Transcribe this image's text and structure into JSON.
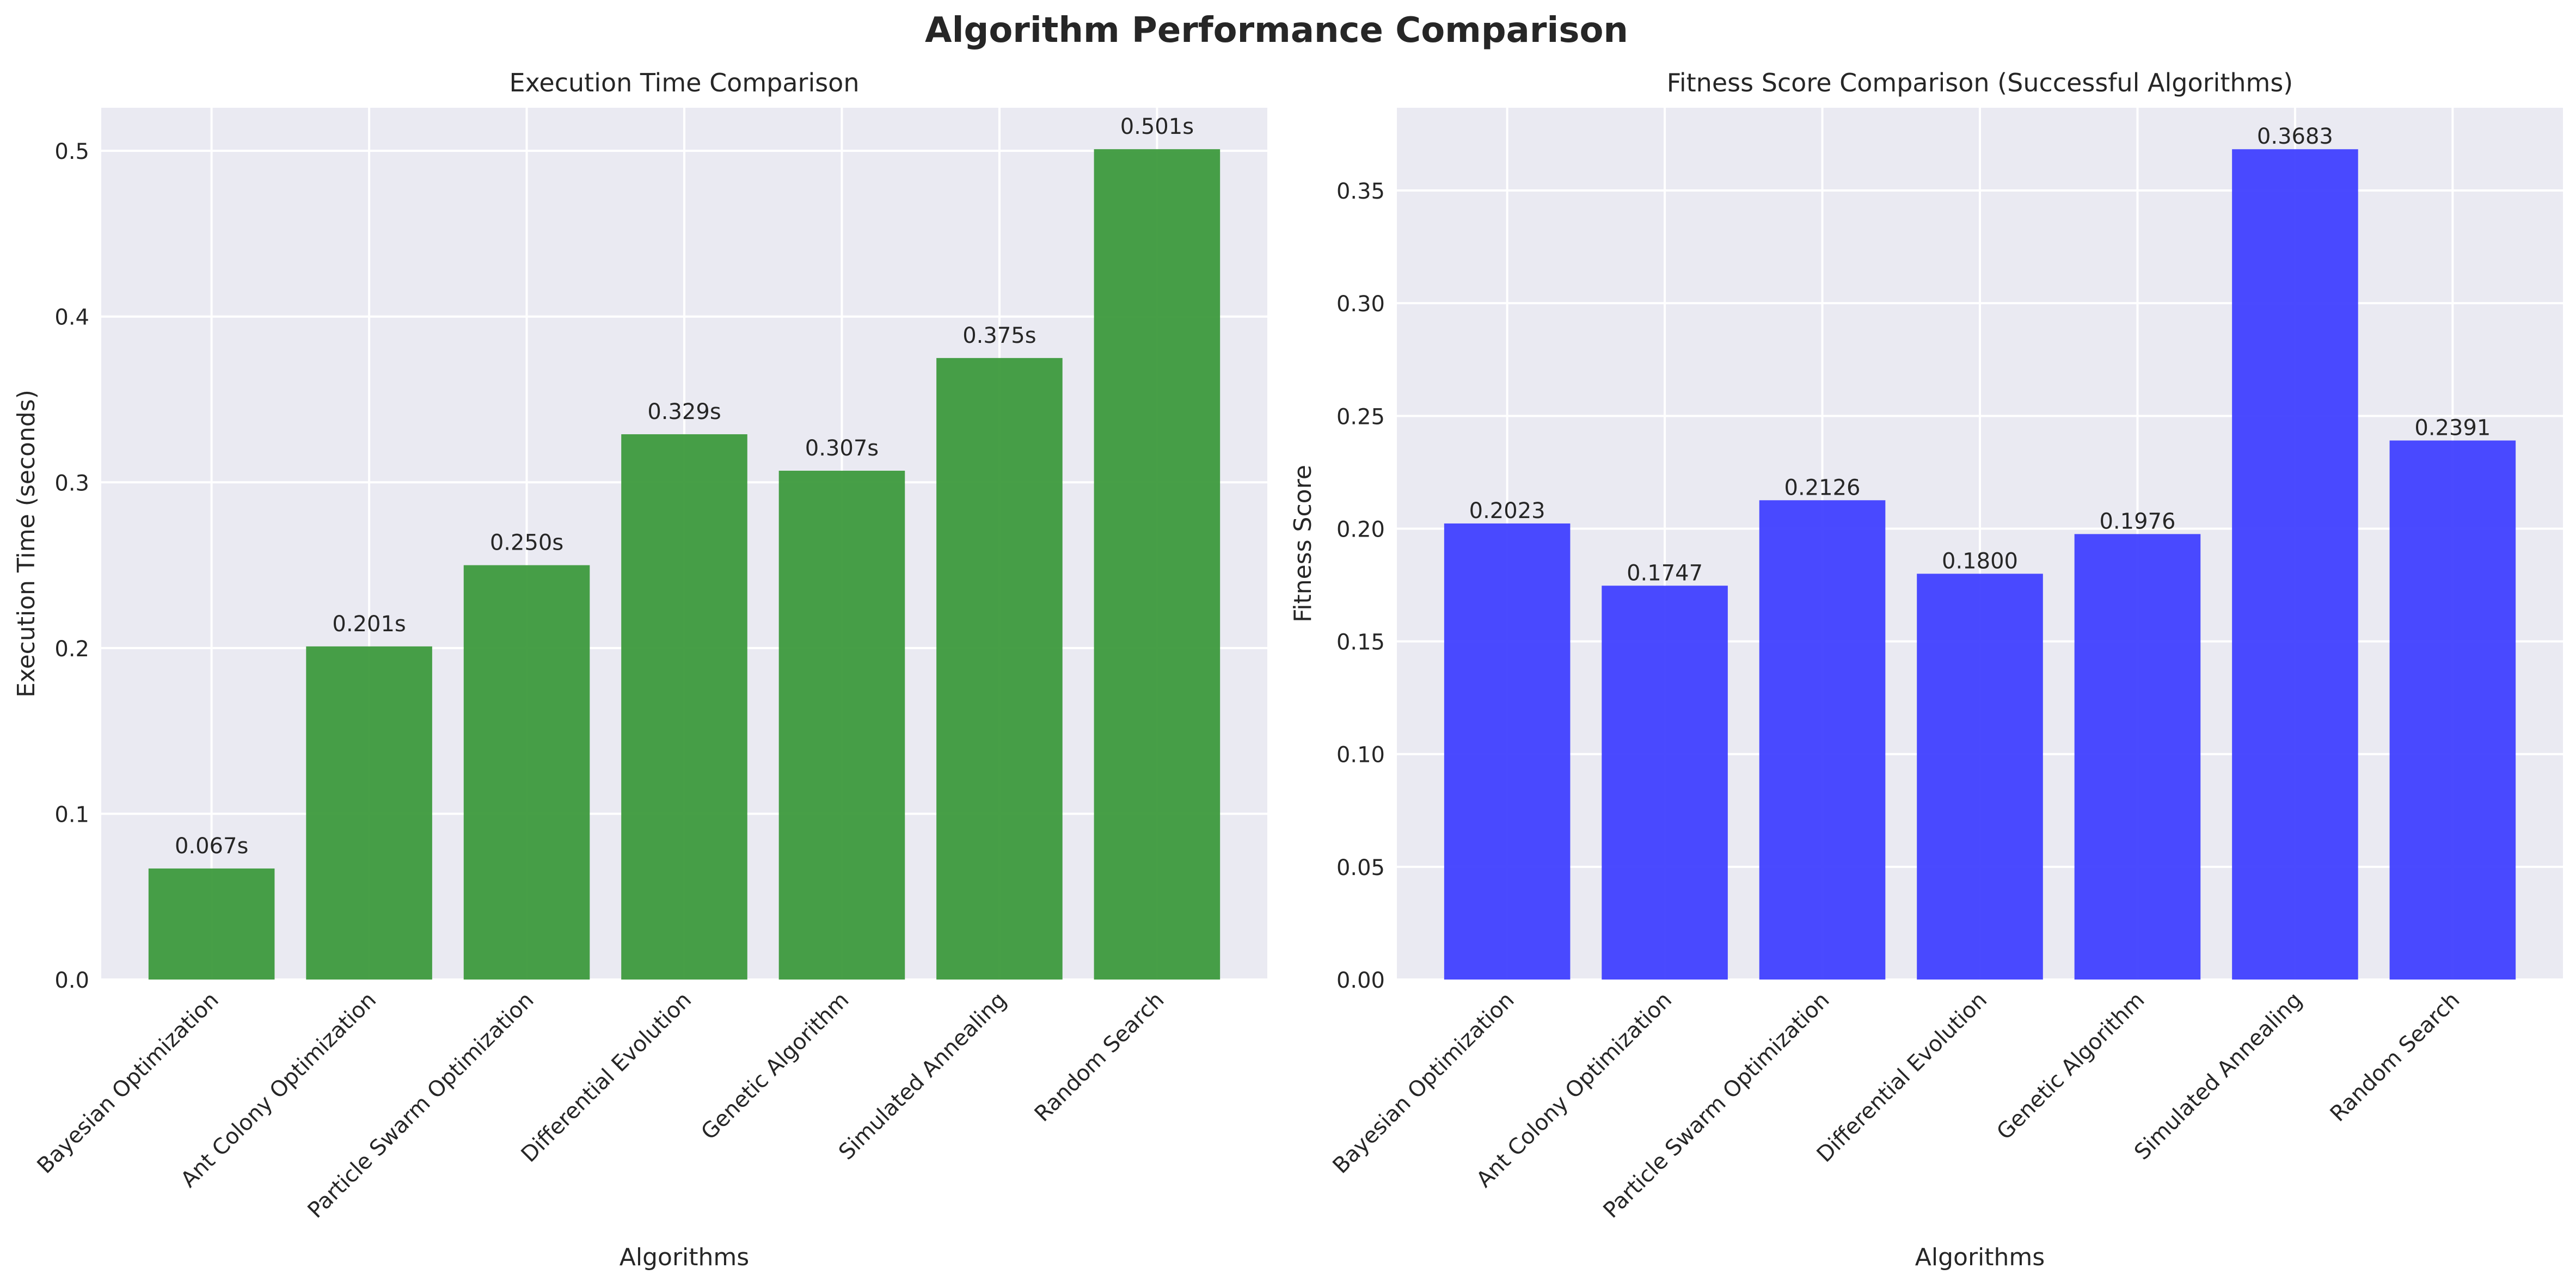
{
  "figure": {
    "title": "Algorithm Performance Comparison"
  },
  "chart_data": [
    {
      "type": "bar",
      "title": "Execution Time Comparison",
      "xlabel": "Algorithms",
      "ylabel": "Execution Time (seconds)",
      "categories": [
        "Bayesian Optimization",
        "Ant Colony Optimization",
        "Particle Swarm Optimization",
        "Differential Evolution",
        "Genetic Algorithm",
        "Simulated Annealing",
        "Random Search"
      ],
      "values": [
        0.067,
        0.201,
        0.25,
        0.329,
        0.307,
        0.375,
        0.501
      ],
      "value_labels": [
        "0.067s",
        "0.201s",
        "0.250s",
        "0.329s",
        "0.307s",
        "0.375s",
        "0.501s"
      ],
      "ylim": [
        0,
        0.526
      ],
      "yticks": [
        0.0,
        0.1,
        0.2,
        0.3,
        0.4,
        0.5
      ],
      "ytick_labels": [
        "0.0",
        "0.1",
        "0.2",
        "0.3",
        "0.4",
        "0.5"
      ],
      "bar_color": "#3d9a3d",
      "grid": true
    },
    {
      "type": "bar",
      "title": "Fitness Score Comparison (Successful Algorithms)",
      "xlabel": "Algorithms",
      "ylabel": "Fitness Score",
      "categories": [
        "Bayesian Optimization",
        "Ant Colony Optimization",
        "Particle Swarm Optimization",
        "Differential Evolution",
        "Genetic Algorithm",
        "Simulated Annealing",
        "Random Search"
      ],
      "values": [
        0.2023,
        0.1747,
        0.2126,
        0.18,
        0.1976,
        0.3683,
        0.2391
      ],
      "value_labels": [
        "0.2023",
        "0.1747",
        "0.2126",
        "0.1800",
        "0.1976",
        "0.3683",
        "0.2391"
      ],
      "ylim": [
        0,
        0.3867
      ],
      "yticks": [
        0.0,
        0.05,
        0.1,
        0.15,
        0.2,
        0.25,
        0.3,
        0.35
      ],
      "ytick_labels": [
        "0.00",
        "0.05",
        "0.10",
        "0.15",
        "0.20",
        "0.25",
        "0.30",
        "0.35"
      ],
      "bar_color": "#4040ff",
      "grid": true
    }
  ]
}
